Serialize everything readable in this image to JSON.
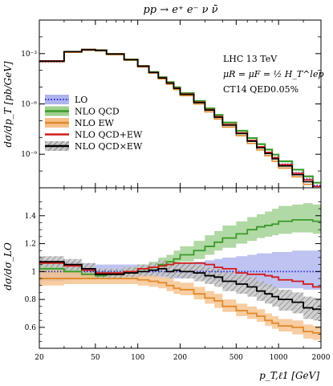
{
  "chart_data": {
    "type": "line",
    "title": "pp → e⁺ e⁻ ν ν̄",
    "xlabel": "p_T,ℓ1 [GeV]",
    "x_scale": "log",
    "xlim": [
      20,
      2000
    ],
    "x_tick_labels": [
      "20",
      "50",
      "100",
      "200",
      "500",
      "1000",
      "2000"
    ],
    "bin_edges": [
      20,
      30,
      40,
      50,
      60,
      80,
      100,
      120,
      140,
      160,
      180,
      200,
      250,
      300,
      350,
      400,
      500,
      600,
      700,
      800,
      900,
      1000,
      1250,
      1500,
      1750,
      2000
    ],
    "annotations": [
      "LHC 13 TeV",
      "μR = μF = ½ H_T^lep",
      "CT14 QED0.05%"
    ],
    "top_panel": {
      "ylabel": "dσ/dp_T [pb/GeV]",
      "y_scale": "log",
      "ylim": [
        1e-11,
        0.1
      ],
      "y_tick_labels": [
        "10⁻³",
        "10⁻⁶",
        "10⁻⁹"
      ],
      "series": [
        {
          "name": "LO",
          "color": "#2b2bd6",
          "style": "dotted",
          "values": [
            0.00032,
            0.0012,
            0.0016,
            0.0015,
            0.0009,
            0.00042,
            0.00017,
            7.2e-05,
            3.4e-05,
            1.7e-05,
            8.2e-06,
            3.6e-06,
            1.2e-06,
            4.3e-07,
            1.65e-07,
            5.7e-08,
            1.8e-08,
            6.5e-09,
            2.8e-09,
            1.3e-09,
            6.5e-10,
            2.6e-10,
            8e-11,
            3.5e-11,
            1.4e-11
          ]
        },
        {
          "name": "NLO QCD",
          "color": "#3a9a2a",
          "style": "solid",
          "values": [
            0.00036,
            0.0013,
            0.00175,
            0.0016,
            0.00097,
            0.00045,
            0.000185,
            8e-05,
            3.9e-05,
            2e-05,
            9.8e-06,
            4.4e-06,
            1.5e-06,
            5.5e-07,
            2.2e-07,
            7.7e-08,
            2.5e-08,
            9.2e-09,
            4e-09,
            1.9e-09,
            9.5e-10,
            3.8e-10,
            1.2e-10,
            4.8e-11,
            2e-11
          ]
        },
        {
          "name": "NLO EW",
          "color": "#e08a2a",
          "style": "solid",
          "values": [
            0.00033,
            0.0012,
            0.00158,
            0.00145,
            0.00087,
            0.0004,
            0.00016,
            6.8e-05,
            3.1e-05,
            1.5e-05,
            7.2e-06,
            3.1e-06,
            1e-06,
            3.4e-07,
            1.27e-07,
            4.2e-08,
            1.28e-08,
            4.4e-09,
            1.8e-09,
            8.1e-10,
            3.8e-10,
            1.5e-10,
            4.5e-11,
            1.6e-11,
            6e-12
          ]
        },
        {
          "name": "NLO QCD+EW",
          "color": "#d21a1a",
          "style": "solid",
          "values": [
            0.00037,
            0.00132,
            0.00175,
            0.0016,
            0.00096,
            0.00044,
            0.00018,
            7.6e-05,
            3.6e-05,
            1.8e-05,
            8.8e-06,
            3.9e-06,
            1.3e-06,
            4.6e-07,
            1.77e-07,
            6e-08,
            1.88e-08,
            6.7e-09,
            2.8e-09,
            1.3e-09,
            6.3e-10,
            2.4e-10,
            7.2e-11,
            3e-11,
            1.2e-11
          ]
        },
        {
          "name": "NLO QCD×EW",
          "color": "#000000",
          "style": "solid",
          "values": [
            0.00035,
            0.0013,
            0.00168,
            0.00155,
            0.00093,
            0.00043,
            0.000175,
            7.5e-05,
            3.5e-05,
            1.75e-05,
            8.4e-06,
            3.7e-06,
            1.2e-06,
            4.3e-07,
            1.6e-07,
            5.4e-08,
            1.7e-08,
            5.9e-09,
            2.4e-09,
            1.1e-09,
            5.3e-10,
            2e-10,
            6e-11,
            2.3e-11,
            9e-12
          ]
        }
      ]
    },
    "bottom_panel": {
      "ylabel": "dσ/dσ_LO",
      "ylim": [
        0.45,
        1.6
      ],
      "y_ticks": [
        0.6,
        0.8,
        1,
        1.2,
        1.4
      ],
      "y_tick_labels": [
        "0.6",
        "0.8",
        "1",
        "1.2",
        "1.4"
      ],
      "series": [
        {
          "name": "LO",
          "color": "#2b2bd6",
          "band_color": "#aeb4ee",
          "central": [
            1,
            1,
            1,
            1,
            1,
            1,
            1,
            1,
            1,
            1,
            1,
            1,
            1,
            1,
            1,
            1,
            1,
            1,
            1,
            1,
            1,
            1,
            1,
            1,
            1
          ],
          "lower": [
            0.93,
            0.94,
            0.95,
            0.96,
            0.96,
            0.96,
            0.96,
            0.96,
            0.96,
            0.96,
            0.95,
            0.95,
            0.95,
            0.94,
            0.93,
            0.92,
            0.91,
            0.9,
            0.89,
            0.89,
            0.88,
            0.88,
            0.88,
            0.87,
            0.87
          ],
          "upper": [
            1.08,
            1.07,
            1.06,
            1.05,
            1.05,
            1.05,
            1.05,
            1.05,
            1.05,
            1.05,
            1.06,
            1.06,
            1.07,
            1.08,
            1.09,
            1.1,
            1.11,
            1.12,
            1.13,
            1.13,
            1.14,
            1.14,
            1.15,
            1.15,
            1.15
          ]
        },
        {
          "name": "NLO QCD",
          "color": "#3a9a2a",
          "band_color": "#9ed08e",
          "central": [
            1.02,
            1.0,
            0.98,
            0.97,
            0.98,
            1.0,
            1.02,
            1.03,
            1.05,
            1.07,
            1.09,
            1.12,
            1.15,
            1.18,
            1.21,
            1.24,
            1.27,
            1.3,
            1.32,
            1.33,
            1.34,
            1.36,
            1.37,
            1.37,
            1.36
          ],
          "lower": [
            0.99,
            0.98,
            0.96,
            0.95,
            0.96,
            0.98,
            0.99,
            1.0,
            1.01,
            1.03,
            1.05,
            1.07,
            1.09,
            1.12,
            1.15,
            1.17,
            1.2,
            1.22,
            1.24,
            1.25,
            1.26,
            1.27,
            1.28,
            1.28,
            1.27
          ],
          "upper": [
            1.05,
            1.03,
            1.01,
            1.0,
            1.01,
            1.03,
            1.05,
            1.07,
            1.1,
            1.12,
            1.15,
            1.18,
            1.22,
            1.26,
            1.29,
            1.33,
            1.36,
            1.39,
            1.41,
            1.43,
            1.45,
            1.47,
            1.48,
            1.49,
            1.48
          ]
        },
        {
          "name": "NLO EW",
          "color": "#e08a2a",
          "band_color": "#f5c08a",
          "central": [
            0.95,
            0.95,
            0.95,
            0.95,
            0.95,
            0.95,
            0.94,
            0.93,
            0.92,
            0.9,
            0.88,
            0.87,
            0.84,
            0.81,
            0.79,
            0.75,
            0.72,
            0.7,
            0.68,
            0.65,
            0.63,
            0.61,
            0.6,
            0.57,
            0.56
          ],
          "lower": [
            0.9,
            0.91,
            0.91,
            0.91,
            0.91,
            0.91,
            0.9,
            0.89,
            0.88,
            0.86,
            0.84,
            0.83,
            0.8,
            0.77,
            0.74,
            0.71,
            0.68,
            0.66,
            0.64,
            0.61,
            0.59,
            0.57,
            0.55,
            0.52,
            0.51
          ],
          "upper": [
            1.01,
            1.0,
            0.99,
            0.99,
            0.99,
            0.99,
            0.98,
            0.97,
            0.96,
            0.95,
            0.93,
            0.92,
            0.89,
            0.86,
            0.84,
            0.8,
            0.77,
            0.75,
            0.73,
            0.7,
            0.68,
            0.66,
            0.65,
            0.62,
            0.61
          ]
        },
        {
          "name": "NLO QCD+EW",
          "color": "#d21a1a",
          "band_color": "none",
          "central": [
            1.06,
            1.04,
            1.01,
            0.99,
            0.99,
            1.0,
            1.02,
            1.03,
            1.04,
            1.05,
            1.06,
            1.06,
            1.06,
            1.05,
            1.03,
            1.02,
            0.99,
            0.98,
            0.98,
            0.97,
            0.96,
            0.94,
            0.93,
            0.91,
            0.89
          ]
        },
        {
          "name": "NLO QCD×EW",
          "color": "#000000",
          "band_color": "#bbbbbb",
          "band_hatch": true,
          "central": [
            1.07,
            1.05,
            1.02,
            0.98,
            0.98,
            0.99,
            1.0,
            1.01,
            1.02,
            1.0,
            1.01,
            1.0,
            0.99,
            0.97,
            0.96,
            0.93,
            0.91,
            0.89,
            0.86,
            0.84,
            0.82,
            0.8,
            0.78,
            0.74,
            0.73
          ],
          "lower": [
            1.03,
            1.01,
            0.99,
            0.95,
            0.95,
            0.96,
            0.97,
            0.97,
            0.97,
            0.95,
            0.96,
            0.95,
            0.93,
            0.91,
            0.89,
            0.86,
            0.84,
            0.82,
            0.79,
            0.77,
            0.75,
            0.72,
            0.7,
            0.66,
            0.65
          ],
          "upper": [
            1.11,
            1.09,
            1.06,
            1.02,
            1.02,
            1.03,
            1.05,
            1.06,
            1.08,
            1.06,
            1.07,
            1.06,
            1.05,
            1.03,
            1.02,
            1.0,
            0.98,
            0.96,
            0.93,
            0.91,
            0.89,
            0.87,
            0.85,
            0.82,
            0.81
          ]
        }
      ]
    }
  }
}
